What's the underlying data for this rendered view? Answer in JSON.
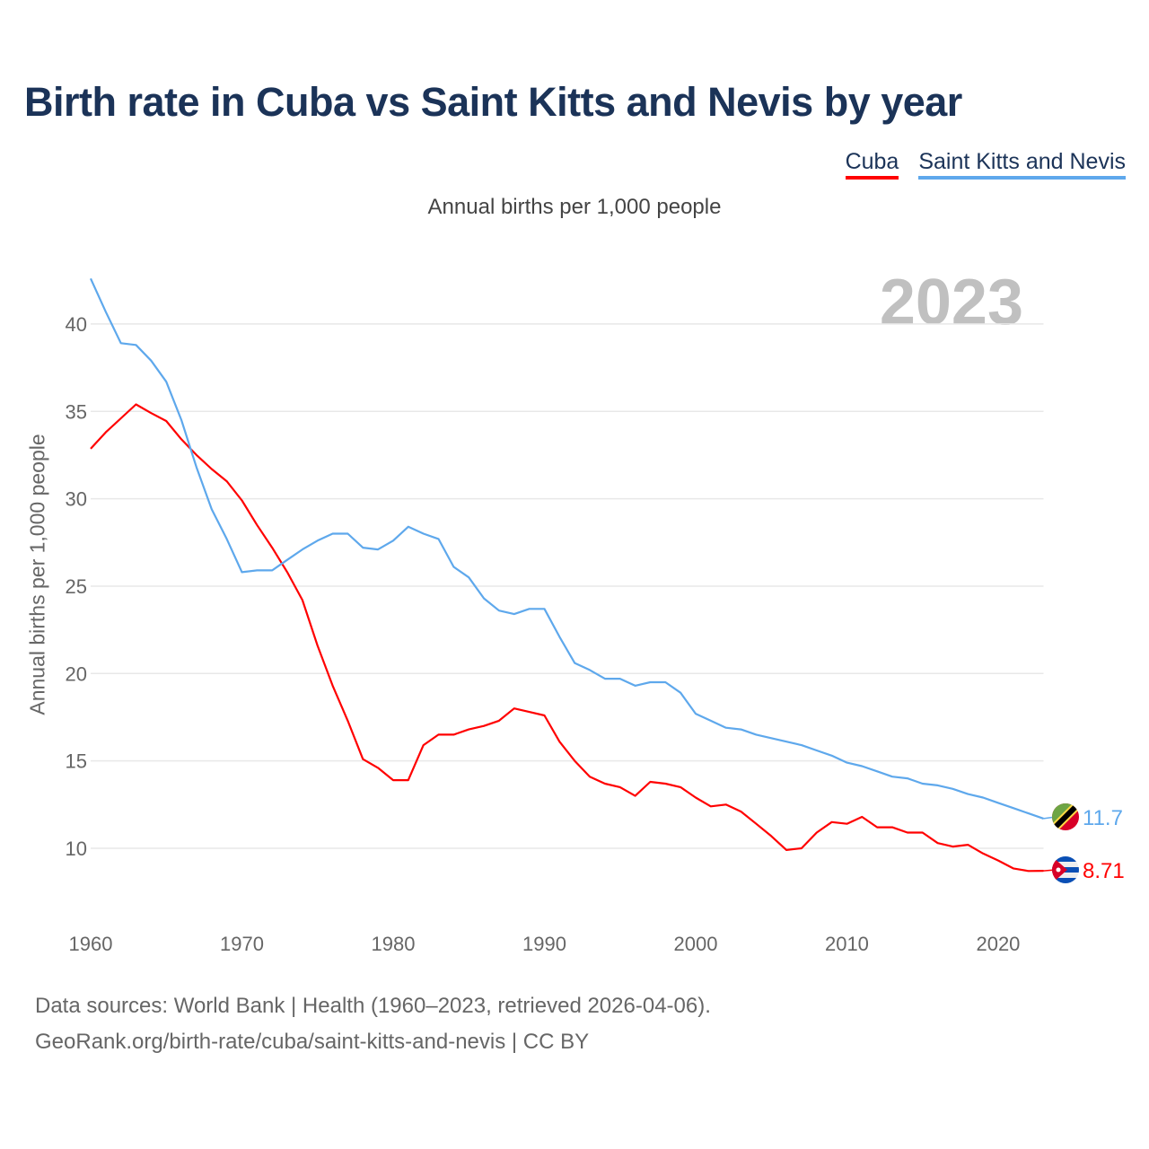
{
  "chart_data": {
    "type": "line",
    "title": "Birth rate in Cuba vs Saint Kitts and Nevis by year",
    "subtitle": "Annual births per 1,000 people",
    "ylabel": "Annual births per 1,000 people",
    "xlabel": "",
    "year_label": "2023",
    "xlim": [
      1960,
      2023
    ],
    "ylim": [
      5,
      43
    ],
    "yticks": [
      10,
      15,
      20,
      25,
      30,
      35,
      40
    ],
    "xticks": [
      1960,
      1970,
      1980,
      1990,
      2000,
      2010,
      2020
    ],
    "grid": true,
    "legend_placement": "top-right",
    "x_start": 1960,
    "series": [
      {
        "name": "Cuba",
        "color": "#ff0000",
        "end_label": "8.71",
        "flag": "cuba-flag",
        "values": [
          32.86,
          33.8,
          34.6,
          35.4,
          34.9,
          34.45,
          33.4,
          32.5,
          31.7,
          31.0,
          29.9,
          28.5,
          27.2,
          25.8,
          24.2,
          21.6,
          19.3,
          17.3,
          15.1,
          14.6,
          13.9,
          13.9,
          15.9,
          16.5,
          16.5,
          16.8,
          17.0,
          17.3,
          18.0,
          17.8,
          17.6,
          16.1,
          15.0,
          14.1,
          13.7,
          13.5,
          13.0,
          13.8,
          13.7,
          13.5,
          12.9,
          12.4,
          12.5,
          12.1,
          11.4,
          10.7,
          9.9,
          10.0,
          10.9,
          11.5,
          11.4,
          11.8,
          11.2,
          11.2,
          10.9,
          10.9,
          10.3,
          10.1,
          10.2,
          9.7,
          9.3,
          8.85,
          8.7,
          8.71
        ]
      },
      {
        "name": "Saint Kitts and Nevis",
        "color": "#5ea8ec",
        "end_label": "11.7",
        "flag": "saint-kitts-and-nevis-flag",
        "values": [
          42.6,
          40.7,
          38.9,
          38.8,
          37.9,
          36.7,
          34.5,
          31.8,
          29.4,
          27.7,
          25.8,
          25.9,
          25.9,
          26.5,
          27.1,
          27.6,
          28.0,
          28.0,
          27.2,
          27.1,
          27.6,
          28.4,
          28.0,
          27.7,
          26.1,
          25.5,
          24.3,
          23.6,
          23.4,
          23.7,
          23.7,
          22.1,
          20.6,
          20.2,
          19.7,
          19.7,
          19.3,
          19.5,
          19.5,
          18.9,
          17.7,
          17.3,
          16.9,
          16.8,
          16.5,
          16.3,
          16.1,
          15.9,
          15.6,
          15.3,
          14.9,
          14.7,
          14.4,
          14.1,
          14.0,
          13.7,
          13.6,
          13.4,
          13.1,
          12.9,
          12.6,
          12.3,
          12.0,
          11.7
        ]
      }
    ]
  },
  "footer": {
    "source_line": "Data sources: World Bank | Health (1960–2023, retrieved 2026-04-06).",
    "url_line": "GeoRank.org/birth-rate/cuba/saint-kitts-and-nevis | CC BY"
  }
}
